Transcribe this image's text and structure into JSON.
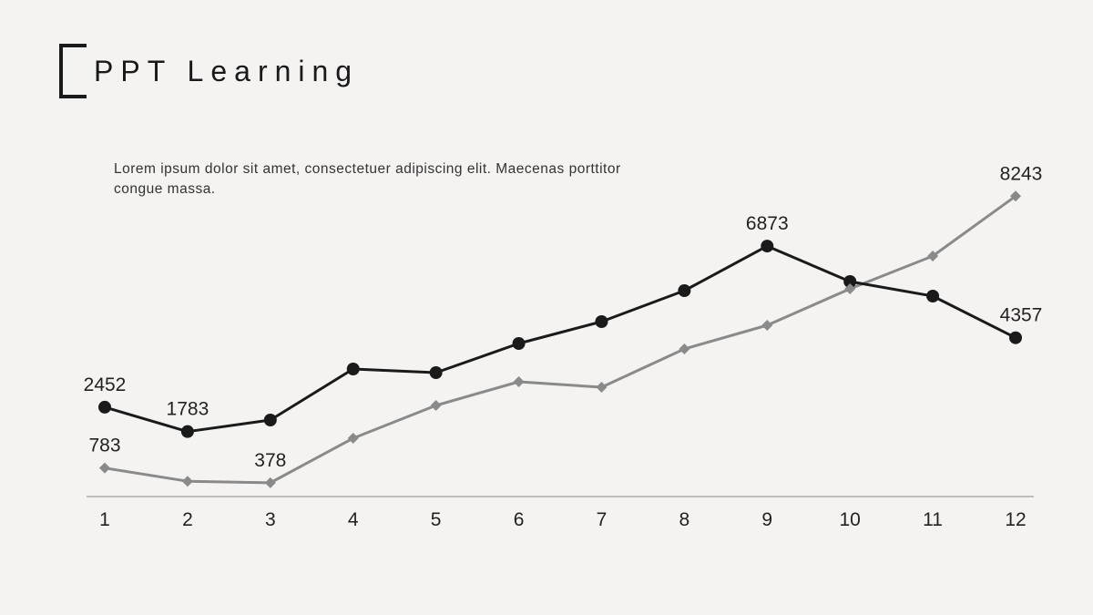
{
  "title": "PPT Learning",
  "subtitle": "Lorem ipsum dolor sit amet, consectetuer adipiscing elit. Maecenas porttitor congue massa.",
  "chart": {
    "type": "line",
    "background_color": "#f4f3f2",
    "axis_color": "#888888",
    "x_labels": [
      "1",
      "2",
      "3",
      "4",
      "5",
      "6",
      "7",
      "8",
      "9",
      "10",
      "11",
      "12"
    ],
    "x_label_fontsize": 21,
    "data_label_fontsize": 21,
    "y_min": 0,
    "y_max": 9000,
    "series": [
      {
        "name": "series-black",
        "values": [
          2452,
          1783,
          2100,
          3500,
          3400,
          4200,
          4800,
          5650,
          6873,
          5900,
          5500,
          4357
        ],
        "line_color": "#1a1a1a",
        "line_width": 3,
        "marker_shape": "circle",
        "marker_color": "#1a1a1a",
        "marker_size": 7,
        "data_labels": [
          {
            "index": 0,
            "text": "2452"
          },
          {
            "index": 1,
            "text": "1783"
          },
          {
            "index": 8,
            "text": "6873"
          },
          {
            "index": 11,
            "text": "4357"
          }
        ]
      },
      {
        "name": "series-grey",
        "values": [
          783,
          420,
          378,
          1600,
          2500,
          3150,
          3000,
          4050,
          4700,
          5700,
          6600,
          8243
        ],
        "line_color": "#8a8a8a",
        "line_width": 3,
        "marker_shape": "diamond",
        "marker_color": "#8a8a8a",
        "marker_size": 6,
        "data_labels": [
          {
            "index": 0,
            "text": "783"
          },
          {
            "index": 2,
            "text": "378"
          },
          {
            "index": 11,
            "text": "8243"
          }
        ]
      }
    ]
  }
}
